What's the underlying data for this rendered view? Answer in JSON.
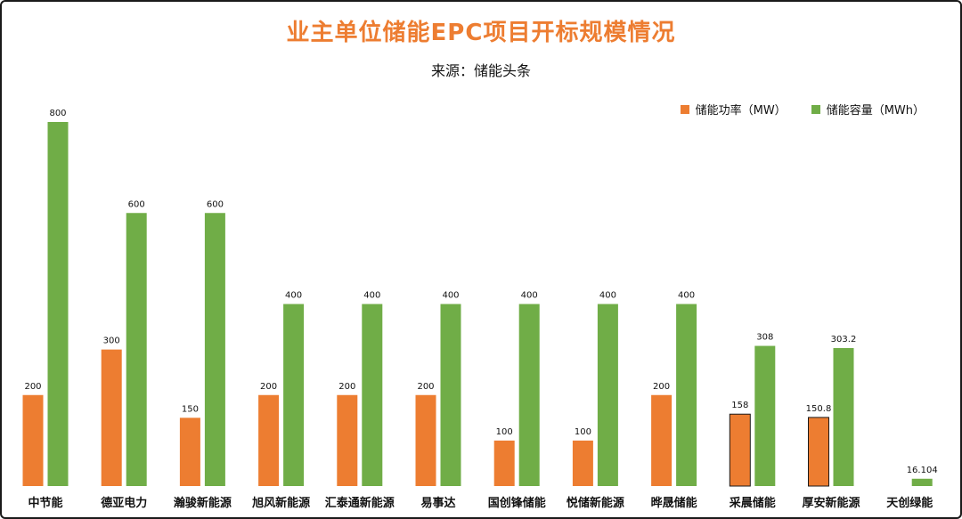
{
  "title": "业主单位储能EPC项目开标规模情况",
  "subtitle": "来源：储能头条",
  "colors": {
    "title": "#ed7d31",
    "power": "#ed7d31",
    "capacity": "#70ad47"
  },
  "chart_data": {
    "type": "bar",
    "title": "业主单位储能EPC项目开标规模情况",
    "subtitle": "来源：储能头条",
    "categories": [
      "中节能",
      "德亚电力",
      "瀚骏新能源",
      "旭风新能源",
      "汇泰通新能源",
      "易事达",
      "国创锋储能",
      "悦储新能源",
      "晔晟储能",
      "采晨储能",
      "厚安新能源",
      "天创绿能"
    ],
    "series": [
      {
        "name": "储能功率（MW）",
        "color": "#ed7d31",
        "values": [
          200,
          300,
          150,
          200,
          200,
          200,
          100,
          100,
          200,
          158,
          150.8,
          null
        ]
      },
      {
        "name": "储能容量（MWh）",
        "color": "#70ad47",
        "values": [
          800,
          600,
          600,
          400,
          400,
          400,
          400,
          400,
          400,
          308,
          303.2,
          16.104
        ]
      }
    ],
    "ylim": [
      0,
      800
    ],
    "legend": "top-right",
    "grid": false,
    "axis_visible": false
  }
}
